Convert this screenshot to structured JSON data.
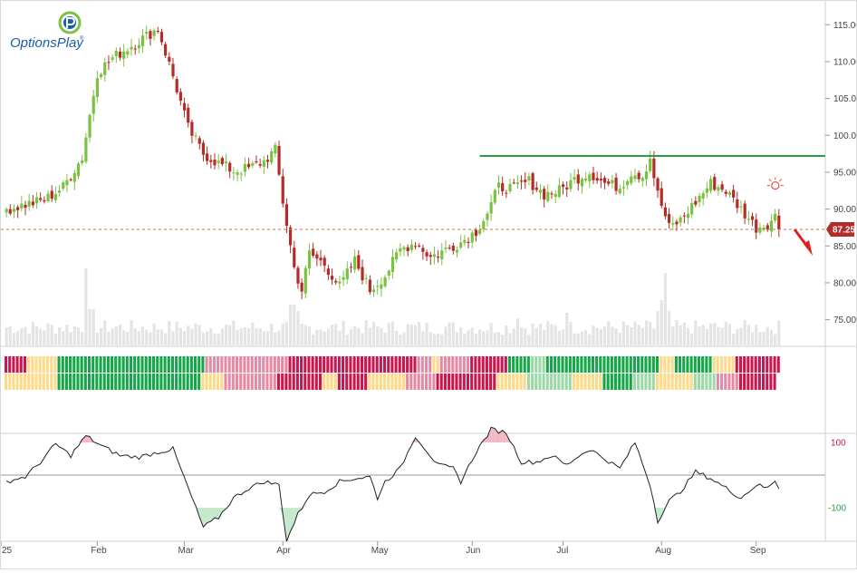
{
  "brand": {
    "name": "OptionsPlay",
    "trademark": "®",
    "logo_colors": {
      "blue": "#1a5fa8",
      "green": "#7cc242"
    }
  },
  "colors": {
    "up": "#7cc242",
    "down": "#b52b27",
    "resistance_line": "#2e9e44",
    "last_price_line": "#d07048",
    "last_price_badge": "#b52b27",
    "arrow": "#e02020",
    "volume": "#e4e4e4",
    "cci_line": "#222222",
    "cci_overbought_fill": "#f1b9c4",
    "cci_oversold_fill": "#c6e8cc",
    "cci_100_label": "#c0174f",
    "cci_minus100_label": "#2e9e44",
    "strip_red": "#c8174f",
    "strip_pink": "#e58aa5",
    "strip_yellow": "#ffd98a",
    "strip_lightgreen": "#9cd8a8",
    "strip_green": "#14a648"
  },
  "chart_data": {
    "type": "candlestick",
    "title": "",
    "x_ticks": [
      "25",
      "Feb",
      "Mar",
      "Apr",
      "May",
      "Jun",
      "Jul",
      "Aug",
      "Sep"
    ],
    "price_axis": {
      "min": 72,
      "max": 117,
      "ticks": [
        "115.00",
        "110.00",
        "105.00",
        "100.00",
        "95.00",
        "90.00",
        "85.00",
        "80.00",
        "75.00"
      ]
    },
    "last_price": "87.25",
    "resistance_level": 97.2,
    "resistance_start_session": 125,
    "breakdown_arrow": "down",
    "alert_marker": "lightbulb-icon",
    "price_anchors": [
      [
        0,
        90.0
      ],
      [
        10,
        91.2
      ],
      [
        15,
        93.0
      ],
      [
        20,
        97.0
      ],
      [
        24,
        108.5
      ],
      [
        28,
        110.5
      ],
      [
        34,
        112.5
      ],
      [
        40,
        114.5
      ],
      [
        44,
        108.0
      ],
      [
        48,
        101.0
      ],
      [
        52,
        97.5
      ],
      [
        56,
        96.2
      ],
      [
        60,
        95.2
      ],
      [
        64,
        95.5
      ],
      [
        68,
        96.5
      ],
      [
        71,
        98.0
      ],
      [
        73,
        91.0
      ],
      [
        76,
        82.0
      ],
      [
        78,
        79.0
      ],
      [
        80,
        84.0
      ],
      [
        84,
        82.5
      ],
      [
        88,
        79.5
      ],
      [
        92,
        83.0
      ],
      [
        96,
        79.0
      ],
      [
        100,
        81.0
      ],
      [
        104,
        84.5
      ],
      [
        108,
        85.5
      ],
      [
        112,
        83.5
      ],
      [
        116,
        84.5
      ],
      [
        120,
        85.5
      ],
      [
        124,
        87.0
      ],
      [
        127,
        89.5
      ],
      [
        130,
        93.0
      ],
      [
        134,
        92.8
      ],
      [
        138,
        93.8
      ],
      [
        142,
        92.0
      ],
      [
        146,
        92.5
      ],
      [
        150,
        94.0
      ],
      [
        154,
        95.0
      ],
      [
        158,
        93.5
      ],
      [
        162,
        93.0
      ],
      [
        165,
        95.0
      ],
      [
        168,
        94.5
      ],
      [
        170,
        97.0
      ],
      [
        172,
        92.0
      ],
      [
        175,
        87.5
      ],
      [
        178,
        88.5
      ],
      [
        182,
        91.0
      ],
      [
        186,
        93.5
      ],
      [
        190,
        92.5
      ],
      [
        194,
        90.0
      ],
      [
        198,
        87.5
      ],
      [
        201,
        88.0
      ],
      [
        203,
        89.0
      ],
      [
        204,
        87.25
      ]
    ],
    "cci_axis": {
      "min": -215,
      "max": 215,
      "ticks": [
        "100",
        "-100"
      ]
    },
    "cci_anchors": [
      [
        0,
        -20
      ],
      [
        5,
        -5
      ],
      [
        9,
        40
      ],
      [
        13,
        95
      ],
      [
        17,
        60
      ],
      [
        21,
        120
      ],
      [
        25,
        90
      ],
      [
        30,
        60
      ],
      [
        35,
        55
      ],
      [
        40,
        70
      ],
      [
        44,
        80
      ],
      [
        48,
        -40
      ],
      [
        52,
        -160
      ],
      [
        56,
        -130
      ],
      [
        60,
        -70
      ],
      [
        64,
        -40
      ],
      [
        68,
        -20
      ],
      [
        72,
        -30
      ],
      [
        74,
        -200
      ],
      [
        77,
        -120
      ],
      [
        80,
        -60
      ],
      [
        84,
        -50
      ],
      [
        88,
        -20
      ],
      [
        92,
        -10
      ],
      [
        96,
        -5
      ],
      [
        98,
        -70
      ],
      [
        100,
        -20
      ],
      [
        104,
        20
      ],
      [
        108,
        120
      ],
      [
        110,
        90
      ],
      [
        114,
        30
      ],
      [
        118,
        20
      ],
      [
        120,
        -20
      ],
      [
        124,
        70
      ],
      [
        128,
        140
      ],
      [
        132,
        130
      ],
      [
        136,
        40
      ],
      [
        140,
        40
      ],
      [
        144,
        60
      ],
      [
        148,
        30
      ],
      [
        150,
        50
      ],
      [
        154,
        80
      ],
      [
        158,
        50
      ],
      [
        162,
        20
      ],
      [
        166,
        100
      ],
      [
        170,
        -30
      ],
      [
        172,
        -140
      ],
      [
        175,
        -80
      ],
      [
        178,
        -50
      ],
      [
        182,
        10
      ],
      [
        186,
        -10
      ],
      [
        190,
        -40
      ],
      [
        194,
        -70
      ],
      [
        198,
        -30
      ],
      [
        201,
        -40
      ],
      [
        203,
        -15
      ],
      [
        204,
        -40
      ]
    ],
    "signal_strip": {
      "rows": 2,
      "runs_row1": [
        [
          "red",
          6
        ],
        [
          "yellow",
          8
        ],
        [
          "green",
          39
        ],
        [
          "pink",
          10
        ],
        [
          "pink",
          12
        ],
        [
          "red",
          8
        ],
        [
          "red",
          26
        ],
        [
          "pink",
          4
        ],
        [
          "yellow",
          2
        ],
        [
          "pink",
          8
        ],
        [
          "red",
          10
        ],
        [
          "green",
          6
        ],
        [
          "lightgreen",
          4
        ],
        [
          "green",
          30
        ],
        [
          "yellow",
          4
        ],
        [
          "green",
          10
        ],
        [
          "yellow",
          6
        ],
        [
          "red",
          14
        ],
        [
          "pink",
          6
        ],
        [
          "lightgreen",
          3
        ],
        [
          "red",
          2
        ]
      ],
      "runs_row2": [
        [
          "yellow",
          14
        ],
        [
          "green",
          38
        ],
        [
          "yellow",
          6
        ],
        [
          "pink",
          14
        ],
        [
          "red",
          12
        ],
        [
          "yellow",
          4
        ],
        [
          "red",
          8
        ],
        [
          "yellow",
          10
        ],
        [
          "pink",
          8
        ],
        [
          "red",
          16
        ],
        [
          "yellow",
          8
        ],
        [
          "lightgreen",
          12
        ],
        [
          "yellow",
          8
        ],
        [
          "green",
          8
        ],
        [
          "lightgreen",
          6
        ],
        [
          "yellow",
          10
        ],
        [
          "lightgreen",
          6
        ],
        [
          "pink",
          6
        ],
        [
          "red",
          10
        ]
      ]
    }
  }
}
